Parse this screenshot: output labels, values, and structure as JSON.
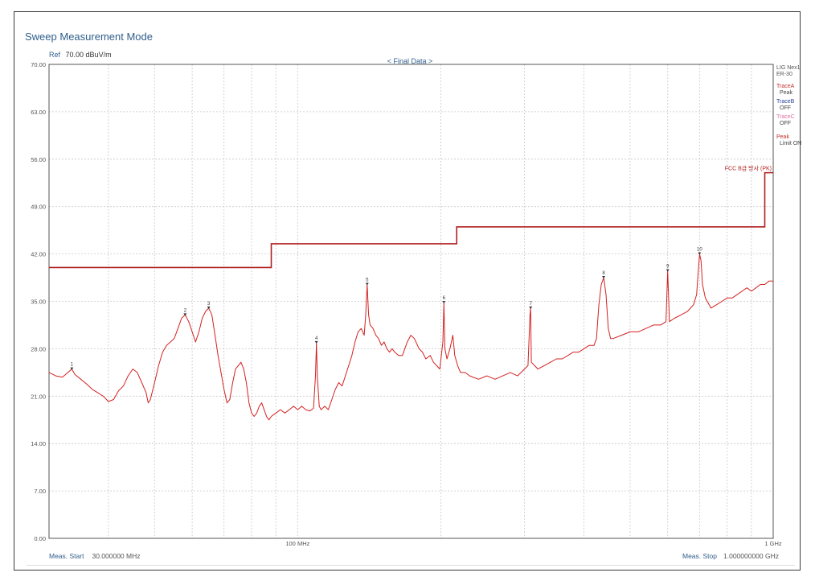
{
  "header": {
    "mode_title": "Sweep Measurement Mode",
    "ref_label": "Ref",
    "ref_value": "70.00 dBuV/m",
    "final_data": "< Final Data >"
  },
  "side_panel": {
    "device": "LIG Nex1",
    "device_sub": "ER-30",
    "trace_a": "TraceA",
    "trace_a_state": "Peak",
    "trace_b": "TraceB",
    "trace_b_state": "OFF",
    "trace_c": "TraceC",
    "trace_c_state": "OFF",
    "peak": "Peak",
    "peak_state": "Limit ON"
  },
  "footer": {
    "meas_start_label": "Meas. Start",
    "meas_start_value": "30.000000 MHz",
    "meas_stop_label": "Meas. Stop",
    "meas_stop_value": "1.000000000 GHz"
  },
  "colors": {
    "trace": "#d42020",
    "limit": "#b02020",
    "grid": "#c8c8c8",
    "label_blue": "#2f5e8c"
  },
  "chart_data": {
    "type": "line",
    "x_scale": "log",
    "xlim": [
      30,
      1000
    ],
    "ylim": [
      0,
      70
    ],
    "x_unit": "MHz",
    "y_ticks": [
      "0.00",
      "7.00",
      "14.00",
      "21.00",
      "28.00",
      "35.00",
      "42.00",
      "49.00",
      "56.00",
      "63.00",
      "70.00"
    ],
    "y_tick_values": [
      0,
      7,
      14,
      21,
      28,
      35,
      42,
      49,
      56,
      63,
      70
    ],
    "x_tick_labels": [
      {
        "value": 100,
        "label": "100 MHz"
      },
      {
        "value": 1000,
        "label": "1 GHz"
      }
    ],
    "grid": true,
    "limit_line": {
      "name": "FCC B급 방사 (PK)",
      "segments": [
        {
          "x0": 30,
          "x1": 88,
          "y": 40.0
        },
        {
          "x0": 88,
          "x1": 216,
          "y": 43.5
        },
        {
          "x0": 216,
          "x1": 960,
          "y": 46.0
        },
        {
          "x0": 960,
          "x1": 1000,
          "y": 54.0
        }
      ]
    },
    "trace": {
      "name": "TraceA",
      "points": [
        [
          30,
          24.5
        ],
        [
          31,
          24.0
        ],
        [
          32,
          23.8
        ],
        [
          33,
          24.6
        ],
        [
          33.5,
          25.0
        ],
        [
          34,
          24.2
        ],
        [
          35,
          23.5
        ],
        [
          36,
          22.8
        ],
        [
          37,
          22.0
        ],
        [
          38,
          21.5
        ],
        [
          39,
          21.0
        ],
        [
          40,
          20.2
        ],
        [
          41,
          20.5
        ],
        [
          42,
          21.8
        ],
        [
          43,
          22.5
        ],
        [
          44,
          24.0
        ],
        [
          45,
          25.0
        ],
        [
          46,
          24.5
        ],
        [
          47,
          23.0
        ],
        [
          48,
          21.5
        ],
        [
          48.5,
          20.0
        ],
        [
          49,
          20.5
        ],
        [
          50,
          23.0
        ],
        [
          51,
          25.5
        ],
        [
          52,
          27.5
        ],
        [
          53,
          28.5
        ],
        [
          54,
          29.0
        ],
        [
          55,
          29.5
        ],
        [
          56,
          31.0
        ],
        [
          57,
          32.5
        ],
        [
          58,
          33.0
        ],
        [
          59,
          32.0
        ],
        [
          60,
          30.5
        ],
        [
          61,
          29.0
        ],
        [
          62,
          30.5
        ],
        [
          63,
          32.5
        ],
        [
          64,
          33.5
        ],
        [
          65,
          34.0
        ],
        [
          66,
          33.0
        ],
        [
          67,
          30.0
        ],
        [
          68,
          27.0
        ],
        [
          69,
          24.5
        ],
        [
          70,
          22.0
        ],
        [
          71,
          20.0
        ],
        [
          72,
          20.5
        ],
        [
          73,
          23.0
        ],
        [
          74,
          25.0
        ],
        [
          75,
          25.5
        ],
        [
          76,
          26.0
        ],
        [
          77,
          25.0
        ],
        [
          78,
          23.0
        ],
        [
          79,
          20.0
        ],
        [
          80,
          18.5
        ],
        [
          81,
          18.0
        ],
        [
          82,
          18.5
        ],
        [
          83,
          19.5
        ],
        [
          84,
          20.0
        ],
        [
          85,
          19.0
        ],
        [
          86,
          18.0
        ],
        [
          87,
          17.5
        ],
        [
          88,
          18.0
        ],
        [
          90,
          18.5
        ],
        [
          92,
          19.0
        ],
        [
          94,
          18.5
        ],
        [
          96,
          19.0
        ],
        [
          98,
          19.5
        ],
        [
          100,
          19.0
        ],
        [
          102,
          19.5
        ],
        [
          104,
          19.0
        ],
        [
          106,
          18.8
        ],
        [
          108,
          19.2
        ],
        [
          109,
          24.0
        ],
        [
          109.5,
          28.9
        ],
        [
          110,
          24.0
        ],
        [
          111,
          19.5
        ],
        [
          112,
          19.0
        ],
        [
          114,
          19.5
        ],
        [
          116,
          19.0
        ],
        [
          118,
          20.5
        ],
        [
          120,
          22.0
        ],
        [
          122,
          23.0
        ],
        [
          124,
          22.5
        ],
        [
          126,
          24.0
        ],
        [
          128,
          25.5
        ],
        [
          130,
          27.0
        ],
        [
          132,
          29.0
        ],
        [
          134,
          30.5
        ],
        [
          136,
          31.0
        ],
        [
          138,
          30.0
        ],
        [
          139,
          33.0
        ],
        [
          140,
          37.5
        ],
        [
          141,
          33.0
        ],
        [
          142,
          31.5
        ],
        [
          144,
          31.0
        ],
        [
          146,
          30.0
        ],
        [
          148,
          29.5
        ],
        [
          150,
          28.5
        ],
        [
          152,
          29.0
        ],
        [
          154,
          28.0
        ],
        [
          156,
          27.5
        ],
        [
          158,
          28.0
        ],
        [
          160,
          27.5
        ],
        [
          163,
          27.0
        ],
        [
          166,
          27.0
        ],
        [
          170,
          29.0
        ],
        [
          173,
          30.0
        ],
        [
          176,
          29.5
        ],
        [
          180,
          28.0
        ],
        [
          183,
          27.5
        ],
        [
          186,
          26.5
        ],
        [
          190,
          27.0
        ],
        [
          193,
          26.0
        ],
        [
          196,
          25.5
        ],
        [
          199,
          25.0
        ],
        [
          202,
          29.0
        ],
        [
          203,
          34.8
        ],
        [
          204,
          28.0
        ],
        [
          206,
          26.5
        ],
        [
          209,
          28.0
        ],
        [
          212,
          30.0
        ],
        [
          214,
          27.0
        ],
        [
          217,
          25.5
        ],
        [
          220,
          24.5
        ],
        [
          225,
          24.5
        ],
        [
          230,
          24.0
        ],
        [
          240,
          23.5
        ],
        [
          250,
          24.0
        ],
        [
          260,
          23.5
        ],
        [
          270,
          24.0
        ],
        [
          280,
          24.5
        ],
        [
          290,
          24.0
        ],
        [
          300,
          25.0
        ],
        [
          305,
          25.5
        ],
        [
          308,
          33.0
        ],
        [
          309,
          34.0
        ],
        [
          310,
          26.0
        ],
        [
          315,
          25.5
        ],
        [
          320,
          25.0
        ],
        [
          330,
          25.5
        ],
        [
          340,
          26.0
        ],
        [
          350,
          26.5
        ],
        [
          360,
          26.5
        ],
        [
          370,
          27.0
        ],
        [
          380,
          27.5
        ],
        [
          390,
          27.5
        ],
        [
          400,
          28.0
        ],
        [
          410,
          28.5
        ],
        [
          420,
          28.5
        ],
        [
          425,
          29.5
        ],
        [
          430,
          34.5
        ],
        [
          435,
          37.5
        ],
        [
          440,
          38.5
        ],
        [
          445,
          36.0
        ],
        [
          450,
          31.0
        ],
        [
          455,
          29.5
        ],
        [
          460,
          29.5
        ],
        [
          480,
          30.0
        ],
        [
          500,
          30.5
        ],
        [
          520,
          30.5
        ],
        [
          540,
          31.0
        ],
        [
          560,
          31.5
        ],
        [
          580,
          31.5
        ],
        [
          595,
          32.0
        ],
        [
          600,
          39.5
        ],
        [
          605,
          32.0
        ],
        [
          620,
          32.5
        ],
        [
          640,
          33.0
        ],
        [
          660,
          33.5
        ],
        [
          680,
          34.5
        ],
        [
          690,
          36.0
        ],
        [
          695,
          39.0
        ],
        [
          700,
          42.0
        ],
        [
          705,
          41.0
        ],
        [
          710,
          37.5
        ],
        [
          720,
          35.5
        ],
        [
          740,
          34.0
        ],
        [
          760,
          34.5
        ],
        [
          780,
          35.0
        ],
        [
          800,
          35.5
        ],
        [
          820,
          35.5
        ],
        [
          840,
          36.0
        ],
        [
          860,
          36.5
        ],
        [
          880,
          37.0
        ],
        [
          900,
          36.5
        ],
        [
          920,
          37.0
        ],
        [
          940,
          37.5
        ],
        [
          960,
          37.5
        ],
        [
          980,
          38.0
        ],
        [
          1000,
          38.0
        ]
      ]
    },
    "markers": [
      {
        "label": "1",
        "x": 33.5,
        "y": 25.0
      },
      {
        "label": "2",
        "x": 58,
        "y": 33.0
      },
      {
        "label": "3",
        "x": 65,
        "y": 34.0
      },
      {
        "label": "4",
        "x": 109.5,
        "y": 28.9
      },
      {
        "label": "5",
        "x": 140,
        "y": 37.5
      },
      {
        "label": "6",
        "x": 203,
        "y": 34.8
      },
      {
        "label": "7",
        "x": 309,
        "y": 34.0
      },
      {
        "label": "8",
        "x": 440,
        "y": 38.5
      },
      {
        "label": "9",
        "x": 600,
        "y": 39.5
      },
      {
        "label": "10",
        "x": 700,
        "y": 42.0
      }
    ]
  }
}
